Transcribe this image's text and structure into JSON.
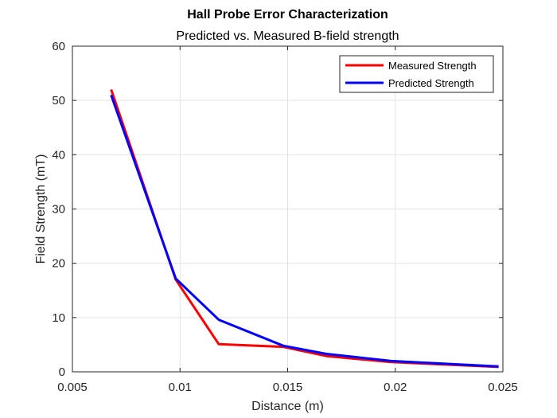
{
  "chart_data": {
    "type": "line",
    "title": "Hall Probe Error Characterization",
    "subtitle": "Predicted vs. Measured B-field strength",
    "xlabel": "Distance (m)",
    "ylabel": "Field Strength (mT)",
    "xlim": [
      0.005,
      0.025
    ],
    "ylim": [
      0,
      60
    ],
    "xticks": [
      0.005,
      0.01,
      0.015,
      0.02,
      0.025
    ],
    "xtick_labels": [
      "0.005",
      "0.01",
      "0.015",
      "0.02",
      "0.025"
    ],
    "yticks": [
      0,
      10,
      20,
      30,
      40,
      50,
      60
    ],
    "ytick_labels": [
      "0",
      "10",
      "20",
      "30",
      "40",
      "50",
      "60"
    ],
    "grid": true,
    "legend_position": "top-right",
    "series": [
      {
        "name": "Measured Strength",
        "color": "#ff0000",
        "x": [
          0.0068,
          0.0098,
          0.0118,
          0.0148,
          0.0168,
          0.0198,
          0.0248
        ],
        "y": [
          52,
          17,
          5.1,
          4.6,
          2.9,
          1.8,
          0.9
        ]
      },
      {
        "name": "Predicted Strength",
        "color": "#0000ff",
        "x": [
          0.0068,
          0.0098,
          0.0118,
          0.0148,
          0.0168,
          0.0198,
          0.0248
        ],
        "y": [
          51,
          17.2,
          9.6,
          4.8,
          3.3,
          2.0,
          1.0
        ]
      }
    ]
  }
}
